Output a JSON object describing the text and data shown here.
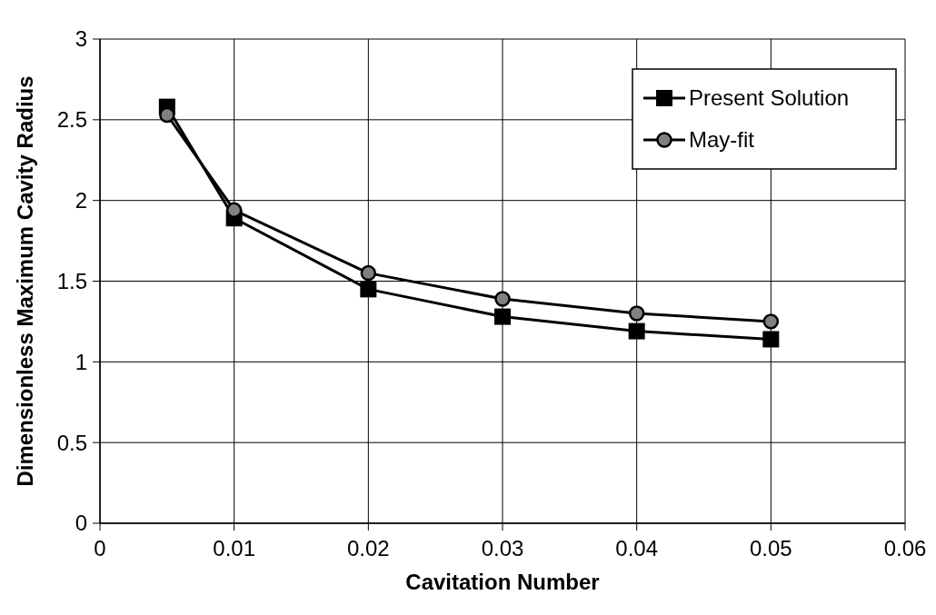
{
  "chart_data": {
    "type": "line",
    "xlabel": "Cavitation Number",
    "ylabel": "Dimensionless Maximum Cavity Radius",
    "x": [
      0.005,
      0.01,
      0.02,
      0.03,
      0.04,
      0.05
    ],
    "series": [
      {
        "name": "Present Solution",
        "color": "#000000",
        "marker": "square",
        "values": [
          2.58,
          1.89,
          1.45,
          1.28,
          1.19,
          1.14
        ]
      },
      {
        "name": "May-fit",
        "color": "#000000",
        "marker": "circle",
        "values": [
          2.53,
          1.94,
          1.55,
          1.39,
          1.3,
          1.25
        ]
      }
    ],
    "xlim": [
      0,
      0.06
    ],
    "xticks": [
      0,
      0.01,
      0.02,
      0.03,
      0.04,
      0.05,
      0.06
    ],
    "ylim": [
      0,
      3
    ],
    "yticks": [
      0,
      0.5,
      1,
      1.5,
      2,
      2.5,
      3
    ],
    "grid": true,
    "legend": "top right",
    "line_style": "solid"
  }
}
